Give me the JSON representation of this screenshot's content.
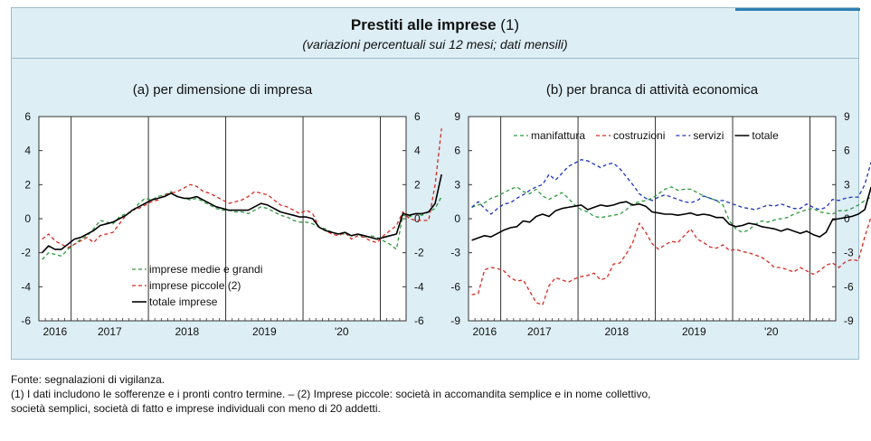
{
  "header": {
    "title": "Prestiti alle imprese",
    "title_note": "(1)",
    "subtitle": "(variazioni percentuali sui 12 mesi; dati mensili)"
  },
  "chart_data": [
    {
      "type": "line",
      "title": "(a) per dimensione di impresa",
      "ylim": [
        -6,
        6
      ],
      "yticks": [
        "6",
        "4",
        "2",
        "0",
        "-2",
        "-4",
        "-6"
      ],
      "x_start": "2015-08",
      "x_end": "2020-04",
      "x_labels": [
        "2016",
        "2017",
        "2018",
        "2019",
        "'20"
      ],
      "legend_position": "bottom-left",
      "grid": false,
      "series": [
        {
          "name": "imprese medie e grandi",
          "color": "#2e9a3e",
          "style": "dashed",
          "values": [
            -2.4,
            -2.0,
            -2.1,
            -2.2,
            -1.8,
            -1.5,
            -1.2,
            -1.0,
            -0.6,
            -0.1,
            -0.2,
            -0.3,
            0.1,
            0.3,
            0.4,
            0.9,
            1.2,
            1.1,
            1.3,
            1.4,
            1.6,
            1.3,
            1.2,
            1.1,
            1.2,
            1.0,
            0.8,
            0.6,
            0.5,
            0.5,
            0.4,
            0.4,
            0.3,
            0.5,
            0.7,
            0.6,
            0.4,
            0.2,
            0.1,
            -0.1,
            -0.2,
            -0.2,
            -0.3,
            -0.5,
            -0.6,
            -0.8,
            -0.9,
            -0.9,
            -1.0,
            -0.9,
            -1.1,
            -1.0,
            -1.1,
            -1.3,
            -1.5,
            -1.8,
            0.2,
            0.1,
            0.3,
            0.2,
            0.4,
            0.6,
            1.3
          ]
        },
        {
          "name": "imprese piccole (2)",
          "color": "#d62a22",
          "style": "dashed",
          "values": [
            -1.2,
            -0.9,
            -1.3,
            -1.5,
            -1.7,
            -1.5,
            -1.3,
            -1.1,
            -1.4,
            -1.0,
            -0.9,
            -0.8,
            -0.3,
            0.2,
            0.5,
            0.6,
            0.8,
            1.0,
            1.1,
            1.4,
            1.5,
            1.6,
            1.8,
            2.0,
            1.9,
            1.6,
            1.5,
            1.3,
            1.1,
            0.9,
            1.0,
            1.1,
            1.3,
            1.6,
            1.5,
            1.4,
            1.1,
            0.8,
            0.7,
            0.5,
            0.3,
            0.5,
            0.3,
            -0.5,
            -0.7,
            -0.9,
            -1.0,
            -0.8,
            -1.2,
            -1.0,
            -1.1,
            -1.3,
            -1.4,
            -1.0,
            -0.7,
            -0.4,
            0.4,
            0.0,
            -0.1,
            -0.1,
            -0.1,
            2.0,
            5.3
          ]
        },
        {
          "name": "totale imprese",
          "color": "#000000",
          "style": "solid",
          "values": [
            -2.0,
            -1.6,
            -1.8,
            -1.8,
            -1.5,
            -1.2,
            -1.1,
            -0.9,
            -0.7,
            -0.4,
            -0.3,
            -0.2,
            0.0,
            0.2,
            0.5,
            0.7,
            0.9,
            1.1,
            1.2,
            1.3,
            1.5,
            1.3,
            1.2,
            1.2,
            1.3,
            1.1,
            0.9,
            0.7,
            0.6,
            0.5,
            0.5,
            0.5,
            0.5,
            0.7,
            0.9,
            0.8,
            0.6,
            0.4,
            0.3,
            0.2,
            0.1,
            0.1,
            0.0,
            -0.5,
            -0.7,
            -0.8,
            -0.9,
            -0.8,
            -1.0,
            -0.9,
            -1.0,
            -1.1,
            -1.2,
            -1.1,
            -1.0,
            -0.9,
            0.3,
            0.2,
            0.3,
            0.3,
            0.4,
            0.9,
            2.6
          ]
        }
      ]
    },
    {
      "type": "line",
      "title": "(b) per branca di attività economica",
      "ylim": [
        -9,
        9
      ],
      "yticks": [
        "9",
        "6",
        "3",
        "0",
        "-3",
        "-6",
        "-9"
      ],
      "x_start": "2015-08",
      "x_end": "2020-04",
      "x_labels": [
        "2016",
        "2017",
        "2018",
        "2019",
        "'20"
      ],
      "legend_position": "top",
      "grid": false,
      "series": [
        {
          "name": "manifattura",
          "color": "#2e9a3e",
          "style": "dashed",
          "values": [
            1.0,
            1.2,
            1.4,
            1.8,
            2.0,
            2.3,
            2.6,
            2.8,
            2.4,
            2.2,
            2.6,
            2.0,
            1.7,
            2.0,
            2.3,
            1.8,
            1.2,
            0.8,
            0.6,
            0.2,
            0.1,
            0.2,
            0.3,
            0.4,
            0.8,
            1.3,
            1.5,
            1.6,
            1.8,
            2.2,
            2.6,
            2.8,
            2.5,
            2.6,
            2.6,
            2.3,
            2.0,
            1.8,
            1.6,
            1.2,
            -0.2,
            -0.9,
            -1.2,
            -1.0,
            -0.5,
            -0.2,
            -0.3,
            -0.1,
            0.0,
            0.1,
            0.4,
            0.6,
            0.8,
            0.9,
            0.6,
            0.5,
            0.4,
            0.7,
            0.7,
            0.9,
            1.2,
            1.6,
            1.9
          ]
        },
        {
          "name": "costruzioni",
          "color": "#d62a22",
          "style": "dashed",
          "values": [
            -6.7,
            -6.6,
            -4.5,
            -4.3,
            -4.4,
            -4.6,
            -5.2,
            -5.5,
            -5.4,
            -6.4,
            -7.4,
            -7.6,
            -5.9,
            -5.2,
            -5.4,
            -5.6,
            -5.3,
            -5.1,
            -5.0,
            -4.8,
            -5.4,
            -5.2,
            -4.0,
            -3.9,
            -3.1,
            -2.1,
            -0.4,
            -1.2,
            -2.2,
            -2.7,
            -2.3,
            -2.0,
            -2.1,
            -1.5,
            -0.9,
            -1.8,
            -2.1,
            -2.5,
            -2.6,
            -2.3,
            -2.8,
            -2.7,
            -2.9,
            -3.0,
            -3.2,
            -3.4,
            -3.8,
            -4.3,
            -4.3,
            -4.5,
            -4.7,
            -4.3,
            -4.6,
            -4.9,
            -4.6,
            -4.1,
            -3.9,
            -4.3,
            -3.8,
            -3.6,
            -3.7,
            -1.6,
            0.2
          ]
        },
        {
          "name": "servizi",
          "color": "#1f35c0",
          "style": "dashed",
          "values": [
            1.0,
            1.5,
            0.9,
            0.4,
            0.9,
            1.3,
            1.4,
            1.8,
            2.1,
            2.5,
            2.8,
            3.0,
            3.9,
            3.4,
            4.0,
            4.6,
            4.9,
            5.2,
            5.1,
            4.8,
            4.5,
            4.8,
            4.9,
            4.4,
            3.7,
            3.0,
            2.2,
            1.8,
            1.6,
            1.9,
            2.1,
            1.9,
            1.7,
            1.5,
            1.4,
            1.6,
            2.0,
            1.8,
            1.6,
            1.6,
            1.4,
            1.2,
            1.0,
            0.9,
            0.8,
            1.0,
            1.2,
            1.1,
            1.3,
            1.1,
            0.9,
            0.9,
            1.3,
            1.0,
            0.8,
            1.0,
            1.7,
            1.6,
            1.8,
            1.9,
            1.9,
            3.0,
            5.0
          ]
        },
        {
          "name": "totale",
          "color": "#000000",
          "style": "solid",
          "values": [
            -1.9,
            -1.7,
            -1.5,
            -1.6,
            -1.3,
            -1.0,
            -0.8,
            -0.7,
            -0.2,
            -0.3,
            0.2,
            0.4,
            0.2,
            0.7,
            0.9,
            1.0,
            1.1,
            1.2,
            0.8,
            1.0,
            1.2,
            1.1,
            1.2,
            1.4,
            1.5,
            1.2,
            1.3,
            1.1,
            0.6,
            0.5,
            0.4,
            0.4,
            0.3,
            0.4,
            0.5,
            0.3,
            0.4,
            0.3,
            0.1,
            0.1,
            -0.5,
            -0.7,
            -0.6,
            -0.4,
            -0.5,
            -0.7,
            -0.8,
            -0.9,
            -1.1,
            -0.9,
            -1.1,
            -1.3,
            -1.1,
            -1.4,
            -1.6,
            -1.2,
            -0.1,
            0.0,
            0.1,
            0.2,
            0.4,
            0.8,
            2.8
          ]
        }
      ]
    }
  ],
  "notes": {
    "source": "Fonte: segnalazioni di vigilanza.",
    "line1": "(1) I dati includono le sofferenze e i pronti contro termine. – (2) Imprese piccole: società in accomandita semplice e in nome collettivo,",
    "line2": "società semplici, società di fatto e imprese individuali con meno di 20 addetti."
  }
}
